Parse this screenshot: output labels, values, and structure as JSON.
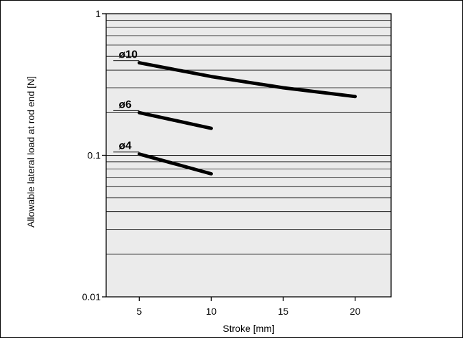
{
  "chart_data": {
    "type": "line",
    "title": "",
    "xlabel": "Stroke [mm]",
    "ylabel": "Allowable lateral load at rod end [N]",
    "x_scale": "linear",
    "y_scale": "log",
    "xlim": [
      2.7,
      22.5
    ],
    "ylim": [
      0.01,
      1
    ],
    "x_ticks": [
      5,
      10,
      15,
      20
    ],
    "x_tick_labels": [
      "5",
      "10",
      "15",
      "20"
    ],
    "y_ticks": [
      0.01,
      0.1,
      1
    ],
    "y_tick_labels": [
      "0.01",
      "0.1",
      "1"
    ],
    "grid": "horizontal minor log gridlines",
    "series": [
      {
        "name": "ø10",
        "x": [
          5,
          10,
          15,
          20
        ],
        "y": [
          0.45,
          0.36,
          0.3,
          0.26
        ]
      },
      {
        "name": "ø6",
        "x": [
          5,
          10
        ],
        "y": [
          0.2,
          0.155
        ]
      },
      {
        "name": "ø4",
        "x": [
          5,
          10
        ],
        "y": [
          0.102,
          0.074
        ]
      }
    ],
    "colors": {
      "plot_background": "#ebebeb",
      "line": "#000000",
      "grid": "#000000"
    }
  }
}
